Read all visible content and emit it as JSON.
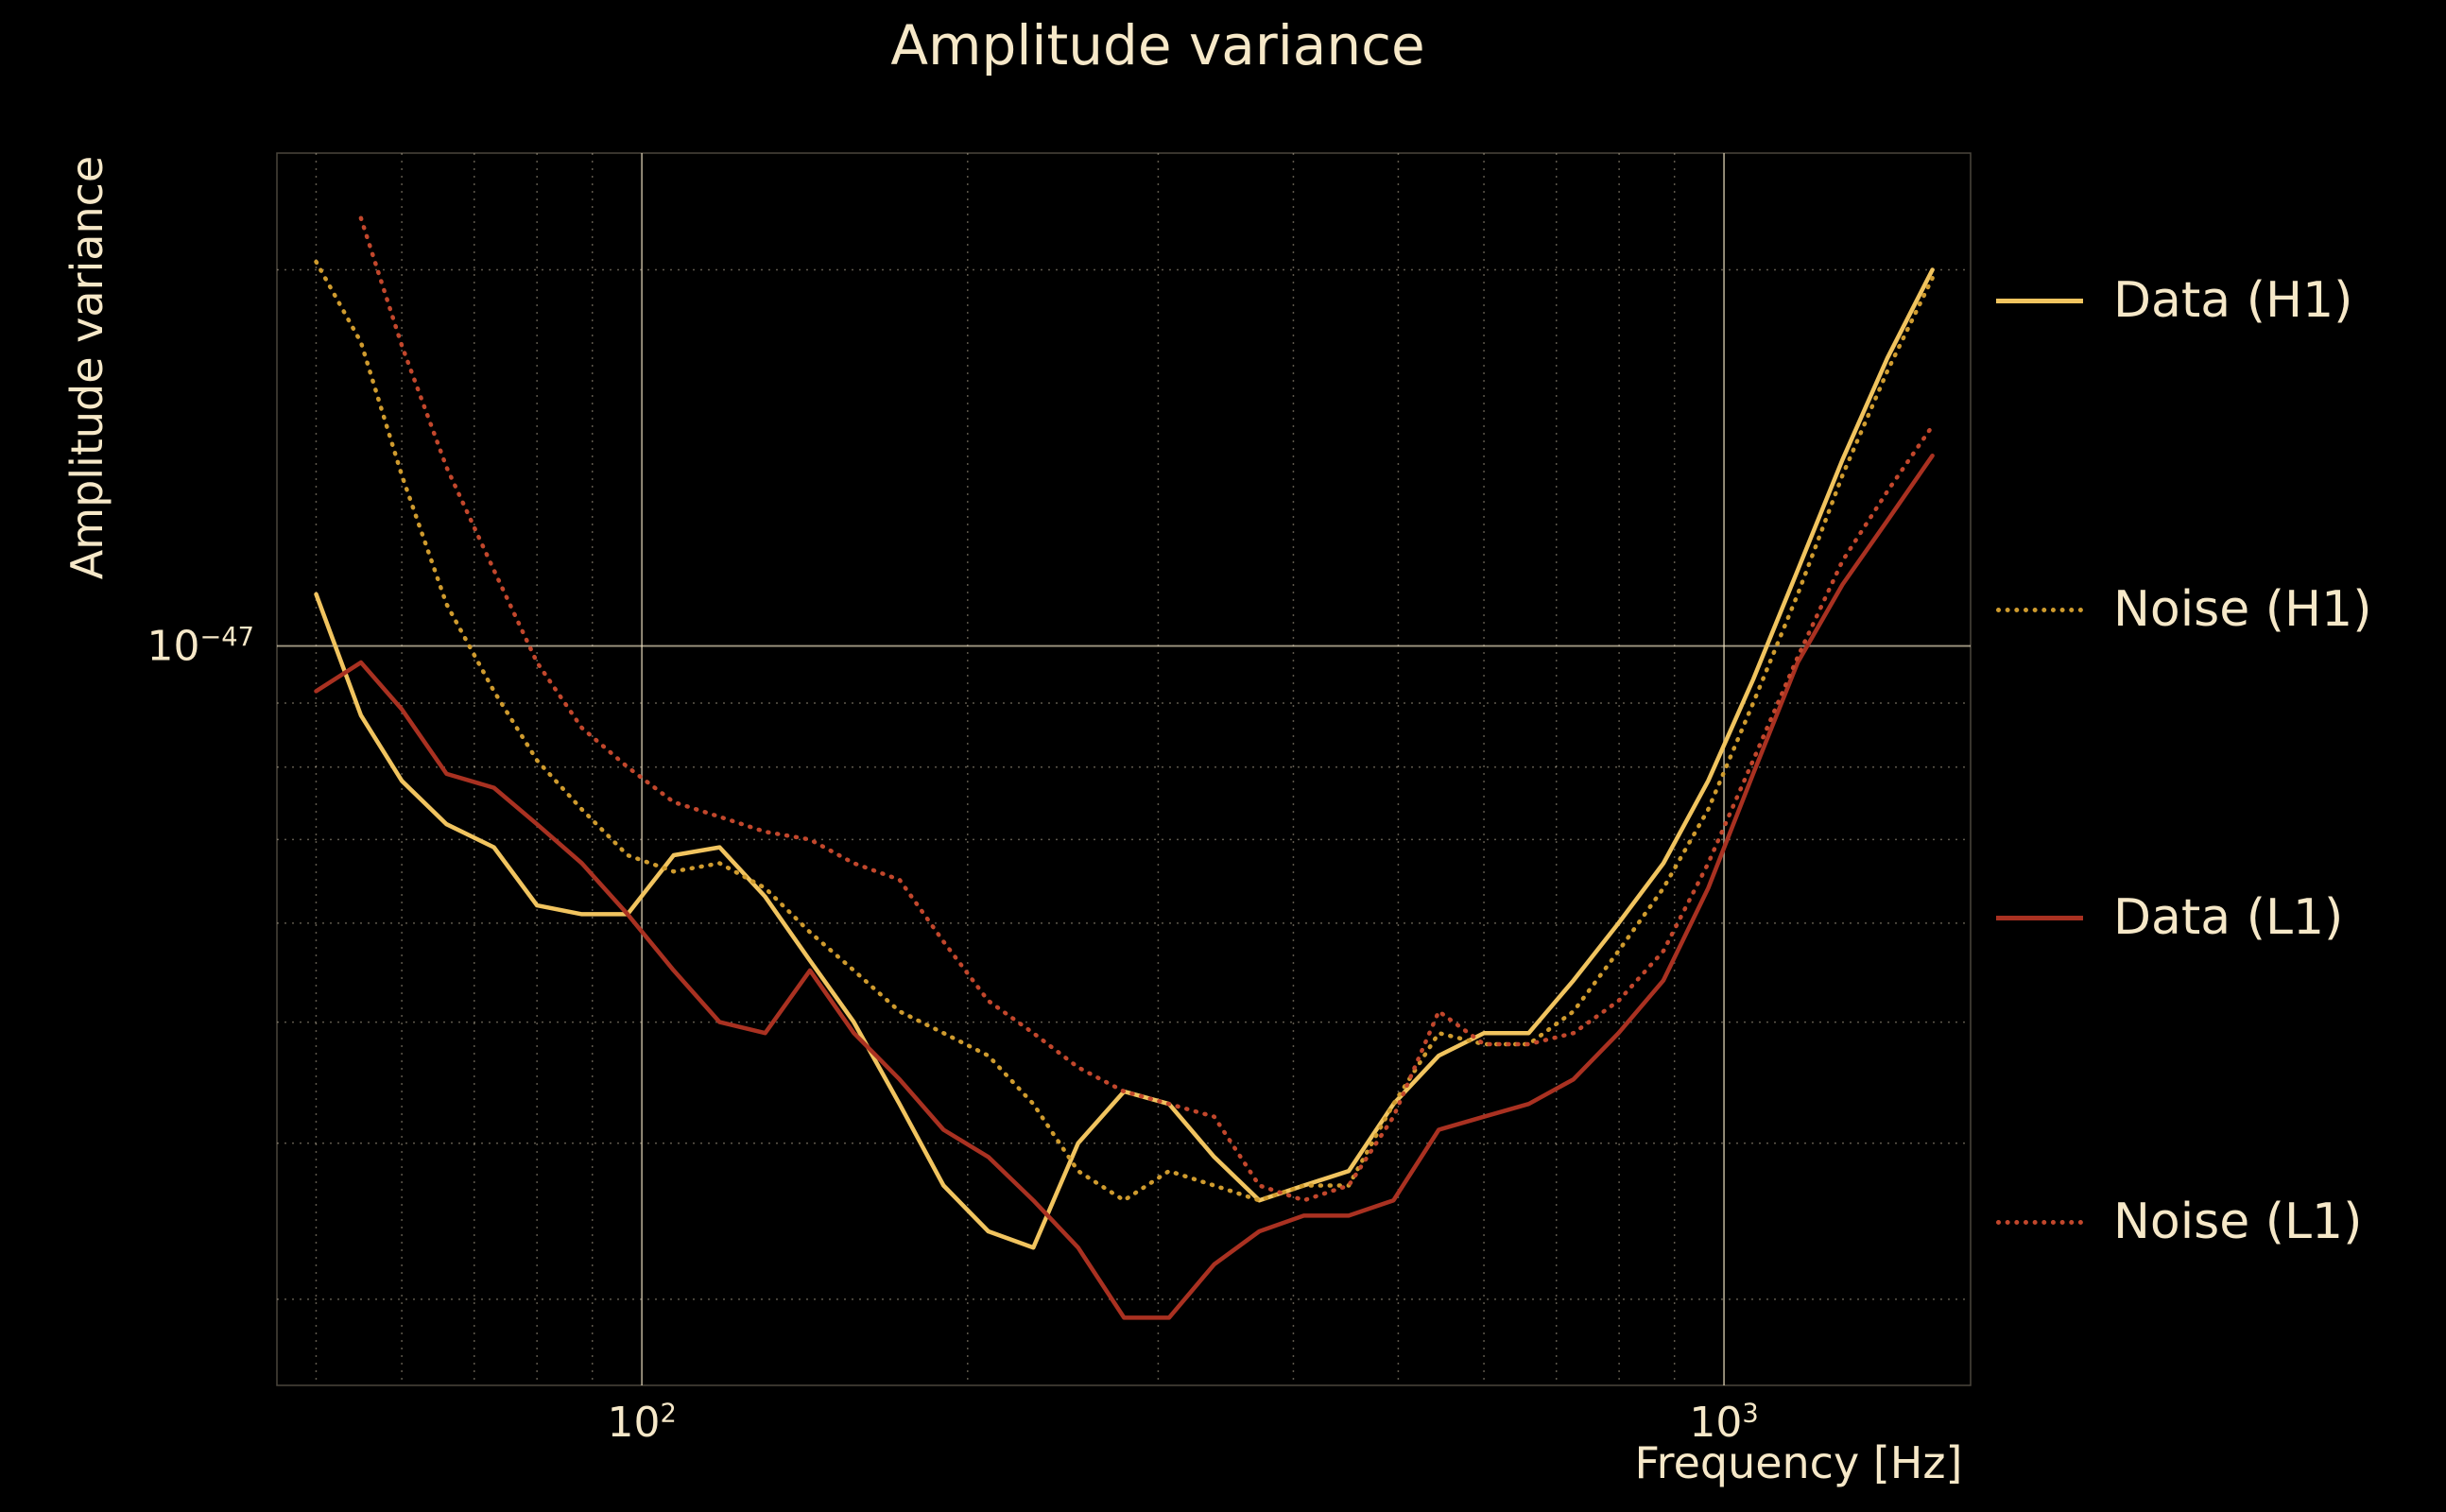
{
  "page": {
    "background": "#000000"
  },
  "chart_data": {
    "type": "line",
    "title": "Amplitude variance",
    "xlabel": "Frequency [Hz]",
    "ylabel": "Amplitude variance",
    "x_scale": "log",
    "y_scale": "log",
    "xlim": [
      46,
      1690
    ],
    "ylim": [
      2.56e-48,
      2.48e-47
    ],
    "value_scale": 1e-48,
    "grid_on": true,
    "legend_position": "right-outside",
    "x_hz": [
      50,
      55,
      60,
      66,
      73,
      80,
      88,
      97,
      107,
      118,
      130,
      143,
      157,
      173,
      190,
      209,
      230,
      253,
      279,
      307,
      338,
      372,
      409,
      450,
      495,
      545,
      600,
      660,
      726,
      799,
      879,
      967,
      1064,
      1170,
      1287,
      1416,
      1558
    ],
    "series": [
      {
        "name": "Data (H1)",
        "line_style": "solid",
        "color": "#f1c45f",
        "values_e48": [
          11.0,
          8.8,
          7.8,
          7.2,
          6.9,
          6.2,
          6.1,
          6.1,
          6.8,
          6.9,
          6.3,
          5.6,
          5.0,
          4.3,
          3.7,
          3.4,
          3.3,
          4.0,
          4.4,
          4.3,
          3.9,
          3.6,
          3.7,
          3.8,
          4.3,
          4.7,
          4.9,
          4.9,
          5.4,
          6.0,
          6.7,
          7.8,
          9.4,
          11.5,
          14.1,
          17.0,
          20.0
        ]
      },
      {
        "name": "Noise (H1)",
        "line_style": "dotted",
        "color": "#cf9b2e",
        "values_e48": [
          20.3,
          17.5,
          13.7,
          10.8,
          9.2,
          8.1,
          7.4,
          6.8,
          6.6,
          6.7,
          6.4,
          5.9,
          5.5,
          5.1,
          4.9,
          4.7,
          4.3,
          3.8,
          3.6,
          3.8,
          3.7,
          3.6,
          3.7,
          3.7,
          4.3,
          4.9,
          4.8,
          4.8,
          5.1,
          5.7,
          6.4,
          7.4,
          9.0,
          11.0,
          13.7,
          16.6,
          19.7
        ]
      },
      {
        "name": "Data (L1)",
        "line_style": "solid",
        "color": "#a93121",
        "values_e48": [
          9.2,
          9.7,
          8.9,
          7.9,
          7.7,
          7.2,
          6.7,
          6.1,
          5.5,
          5.0,
          4.9,
          5.5,
          4.9,
          4.5,
          4.1,
          3.9,
          3.6,
          3.3,
          2.9,
          2.9,
          3.2,
          3.4,
          3.5,
          3.5,
          3.6,
          4.1,
          4.2,
          4.3,
          4.5,
          4.9,
          5.4,
          6.4,
          7.9,
          9.7,
          11.2,
          12.6,
          14.2
        ]
      },
      {
        "name": "Noise (L1)",
        "line_style": "dotted",
        "color": "#c2472c",
        "values_e48": [
          null,
          22.0,
          17.4,
          13.9,
          11.5,
          9.7,
          8.6,
          8.0,
          7.5,
          7.3,
          7.1,
          7.0,
          6.7,
          6.5,
          5.8,
          5.2,
          4.9,
          4.6,
          4.4,
          4.3,
          4.2,
          3.7,
          3.6,
          3.7,
          4.2,
          5.1,
          4.8,
          4.8,
          4.9,
          5.2,
          5.7,
          6.7,
          8.1,
          9.8,
          11.7,
          13.3,
          15.0
        ]
      }
    ],
    "xticks": [
      {
        "value": 100,
        "base": "10",
        "exp": "2"
      },
      {
        "value": 1000,
        "base": "10",
        "exp": "3"
      }
    ],
    "yticks": [
      {
        "value_e48": 10,
        "base": "10",
        "exp": "−47"
      }
    ],
    "grid": {
      "x_minor": [
        50,
        60,
        70,
        80,
        90,
        200,
        300,
        400,
        500,
        600,
        700,
        800,
        900
      ],
      "x_major": [
        100,
        1000
      ],
      "y_minor_e48": [
        3,
        4,
        5,
        6,
        7,
        8,
        9,
        20
      ],
      "y_major_e48": [
        10
      ]
    },
    "colors": {
      "background": "#000000",
      "text": "#f6e8c8",
      "grid": "#f6e8c8"
    }
  }
}
